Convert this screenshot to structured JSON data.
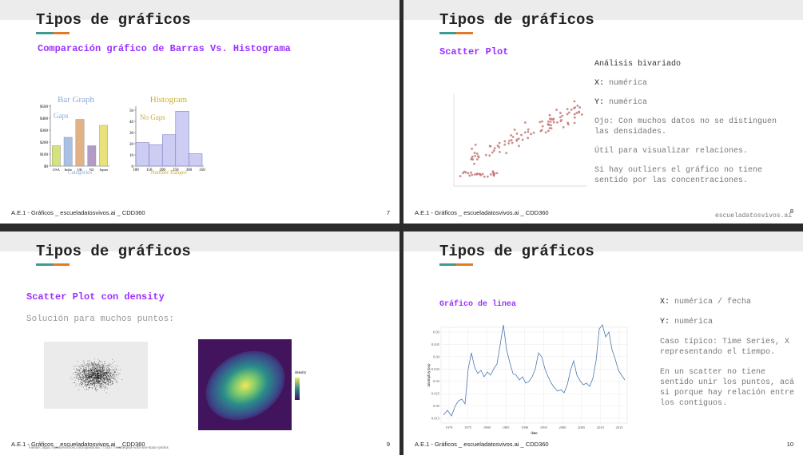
{
  "slides": [
    {
      "title": "Tipos de gráficos",
      "subtitle": "Comparación gráfico de Barras Vs. Histograma",
      "bar_graph": {
        "type": "bar",
        "title": "Bar Graph",
        "annotation": "Gaps",
        "axis_label": "Categories",
        "categories": [
          "USA",
          "India",
          "UK",
          "NZ",
          "Japan"
        ],
        "values": [
          170,
          240,
          390,
          170,
          340
        ],
        "colors": [
          "#d6e27c",
          "#a9c0e6",
          "#e2b184",
          "#b29bc4",
          "#e9e27c"
        ],
        "ylim": [
          0,
          500
        ],
        "yticks": [
          {
            "value": 0,
            "label": "$0"
          },
          {
            "value": 100,
            "label": "$100"
          },
          {
            "value": 200,
            "label": "$200"
          },
          {
            "value": 300,
            "label": "$300"
          },
          {
            "value": 400,
            "label": "$400"
          },
          {
            "value": 500,
            "label": "$500"
          }
        ]
      },
      "histogram": {
        "type": "histogram",
        "title": "Histogram",
        "annotation": "No Gaps",
        "axis_label": "Number Ranges",
        "bins": [
          100,
          150,
          200,
          250,
          300,
          350
        ],
        "values": [
          21,
          19,
          28,
          49,
          11
        ],
        "color": "#cdcdf3",
        "ylim": [
          0,
          50
        ],
        "yticks": [
          0,
          10,
          20,
          30,
          40,
          50
        ]
      },
      "footer": "A.E.1 - Gráficos _ escueladatosvivos.ai _ CDD360",
      "page": "7"
    },
    {
      "title": "Tipos de gráficos",
      "subtitle": "Scatter Plot",
      "notes": [
        {
          "text": "Análisis bivariado"
        },
        {
          "label": "X:",
          "text": "numérica"
        },
        {
          "label": "Y:",
          "text": "numérica"
        },
        {
          "text": "Ojo: Con muchos datos no se distinguen las densidades."
        },
        {
          "text": "Útil para visualizar relaciones."
        },
        {
          "text": "Si hay outliers el gráfico no tiene sentido por las concentraciones."
        }
      ],
      "footer": "A.E.1 - Gráficos _ escueladatosvivos.ai _ CDD360",
      "site": "escueladatosvivos.ai",
      "page": "8"
    },
    {
      "title": "Tipos de gráficos",
      "subtitle": "Scatter Plot con density",
      "body": "Solución para muchos puntos:",
      "legend": "density",
      "footer": "A.E.1 - Gráficos _ escueladatosvivos.ai _ CDD360",
      "source": "Fuente: https://stackoverflow.com/questions/7714677/scatterplot-with-too-many-points",
      "page": "9"
    },
    {
      "title": "Tipos de gráficos",
      "subtitle": "Gráfico de linea",
      "line_chart": {
        "xlabel": "date",
        "ylabel": "unemploy/pop",
        "xticks": [
          "1970",
          "1975",
          "1980",
          "1985",
          "1990",
          "1995",
          "2000",
          "2005",
          "2010",
          "2015"
        ],
        "yticks": [
          "0.05",
          "0.045",
          "0.04",
          "0.035",
          "0.03",
          "0.025",
          "0.02",
          "0.015"
        ]
      },
      "notes": [
        {
          "label": "X:",
          "text": "numérica / fecha"
        },
        {
          "label": "Y:",
          "text": "numérica"
        },
        {
          "text": "Caso típico: Time Series, X representando el tiempo."
        },
        {
          "text": "En un scatter no tiene sentido unir los puntos, acá si porque hay relación entre los contiguos."
        }
      ],
      "footer": "A.E.1 - Gráficos _ escueladatosvivos.ai _ CDD360",
      "page": "10"
    }
  ]
}
